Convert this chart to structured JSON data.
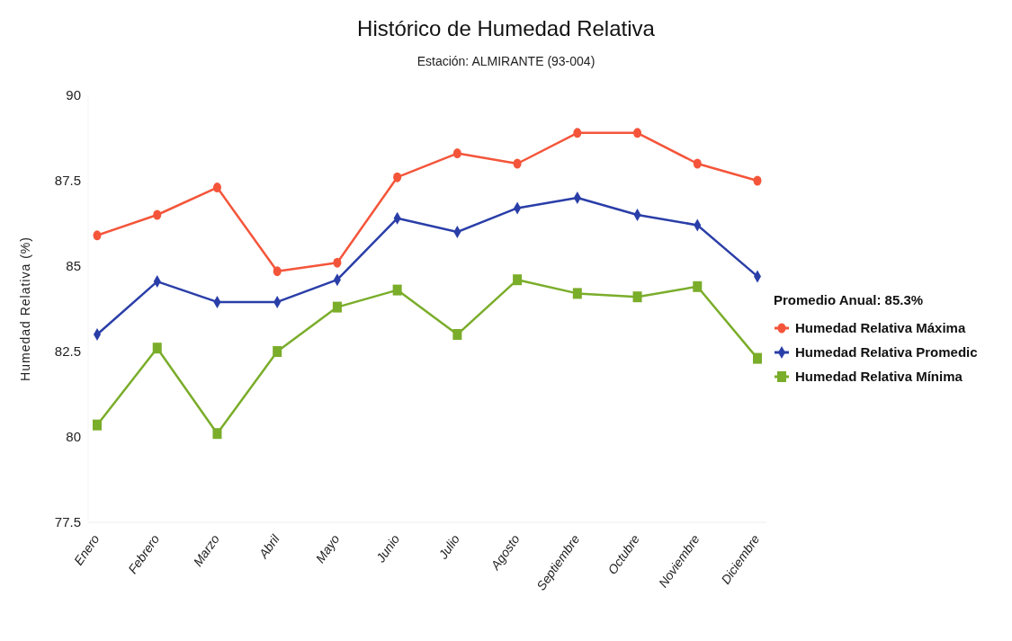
{
  "chart_data": {
    "type": "line",
    "title": "Histórico de Humedad Relativa",
    "subtitle": "Estación: ALMIRANTE (93-004)",
    "ylabel": "Humedad Relativa (%)",
    "legend_title": "Promedio Anual: 85.3%",
    "categories": [
      "Enero",
      "Febrero",
      "Marzo",
      "Abril",
      "Mayo",
      "Junio",
      "Julio",
      "Agosto",
      "Septiembre",
      "Octubre",
      "Noviembre",
      "Diciembre"
    ],
    "series": [
      {
        "name": "Humedad Relativa Máxima",
        "color": "#f4553a",
        "marker": "circle",
        "values": [
          85.9,
          86.5,
          87.3,
          84.85,
          85.1,
          87.6,
          88.3,
          88.0,
          88.9,
          88.9,
          88.0,
          87.5
        ]
      },
      {
        "name": "Humedad Relativa Promedic",
        "color": "#2a3ea8",
        "marker": "diamond",
        "values": [
          83.0,
          84.55,
          83.95,
          83.95,
          84.6,
          86.4,
          86.0,
          86.7,
          87.0,
          86.5,
          86.2,
          84.7
        ]
      },
      {
        "name": "Humedad Relativa Mínima",
        "color": "#7aad2a",
        "marker": "square",
        "values": [
          80.35,
          82.6,
          80.1,
          82.5,
          83.8,
          84.3,
          83.0,
          84.6,
          84.2,
          84.1,
          84.4,
          82.3
        ]
      }
    ],
    "ylim": [
      77.5,
      90
    ],
    "yticks": [
      77.5,
      80,
      82.5,
      85,
      87.5,
      90
    ],
    "grid": false,
    "legend": "right",
    "line_style": "solid"
  }
}
